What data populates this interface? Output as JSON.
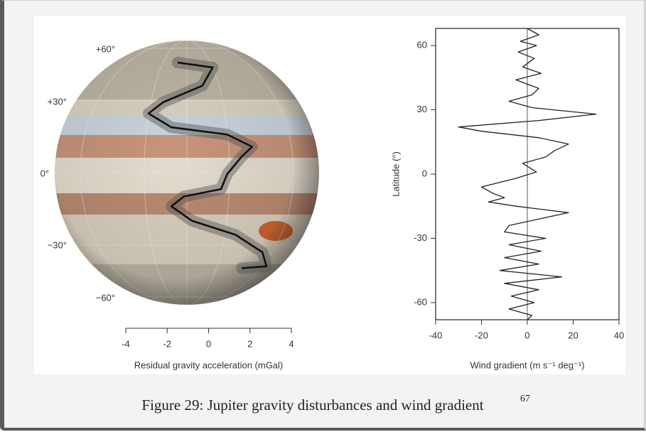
{
  "chart_data": [
    {
      "type": "line",
      "x_label": "Residual gravity acceleration (mGal)",
      "xlim": [
        -4,
        4
      ],
      "xticks": [
        -4,
        -2,
        0,
        2,
        4
      ],
      "latitude_labels": [
        {
          "value": 60,
          "label": "+60°"
        },
        {
          "value": 30,
          "label": "+30°"
        },
        {
          "value": 0,
          "label": "0°"
        },
        {
          "value": -30,
          "label": "−30°"
        },
        {
          "value": -60,
          "label": "−60°"
        }
      ],
      "y": [
        51,
        48,
        38,
        30,
        25,
        19,
        16,
        11,
        7,
        0,
        -6,
        -9,
        -13,
        -19,
        -25,
        -33,
        -40,
        -41
      ],
      "values": [
        -1.5,
        0.2,
        -0.3,
        -2.2,
        -2.9,
        -1.8,
        0.9,
        2.1,
        1.6,
        0.9,
        0.6,
        -1.2,
        -1.8,
        -0.8,
        1.3,
        2.6,
        2.8,
        1.6
      ],
      "color": "#111111"
    },
    {
      "type": "line",
      "x_label": "Wind gradient (m s⁻¹ deg⁻¹)",
      "y_label": "Latitude (°)",
      "xlim": [
        -40,
        40
      ],
      "xticks": [
        -40,
        -20,
        0,
        20,
        40
      ],
      "ylim": [
        -68,
        68
      ],
      "yticks": [
        -60,
        -30,
        0,
        30,
        60
      ],
      "y": [
        68,
        65,
        62,
        60,
        57,
        54,
        50,
        47,
        44,
        40,
        37,
        34,
        31,
        28,
        25,
        22,
        20,
        17,
        14,
        11,
        8,
        5,
        1,
        -2,
        -6,
        -9,
        -11,
        -13,
        -15,
        -18,
        -21,
        -24,
        -27,
        -30,
        -33,
        -36,
        -39,
        -42,
        -45,
        -48,
        -51,
        -54,
        -57,
        -60,
        -63,
        -66,
        -68
      ],
      "values": [
        0,
        5,
        -3,
        4,
        -4,
        3,
        -2,
        6,
        -5,
        5,
        2,
        -8,
        2,
        30,
        5,
        -30,
        -20,
        5,
        18,
        12,
        8,
        -2,
        4,
        -5,
        -20,
        -15,
        -10,
        -17,
        -5,
        18,
        5,
        -8,
        -10,
        8,
        -8,
        6,
        -10,
        5,
        -12,
        15,
        -10,
        5,
        -7,
        3,
        -8,
        2,
        0
      ],
      "color": "#222222"
    }
  ],
  "caption": {
    "text": "Figure 29: Jupiter gravity disturbances and wind gradient",
    "ref": "67"
  }
}
